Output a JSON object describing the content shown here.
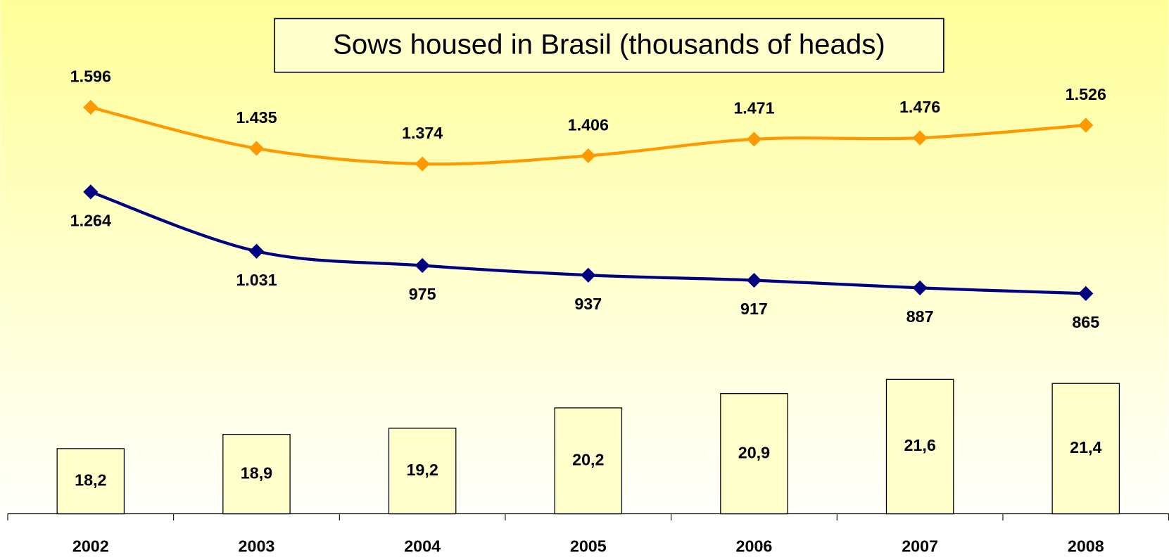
{
  "chart_data": {
    "type": "combo",
    "title": "Sows housed in Brasil (thousands of heads)",
    "categories": [
      "2002",
      "2003",
      "2004",
      "2005",
      "2006",
      "2007",
      "2008"
    ],
    "ylim": [
      0,
      2000
    ],
    "y2lim": [
      15,
      40
    ],
    "series": [
      {
        "type": "line",
        "color": "#ff9900",
        "values": [
          1596,
          1435,
          1374,
          1406,
          1471,
          1476,
          1526
        ],
        "value_labels": [
          "1.596",
          "1.435",
          "1.374",
          "1.406",
          "1.471",
          "1.476",
          "1.526"
        ]
      },
      {
        "type": "line",
        "color": "#000080",
        "values": [
          1264,
          1031,
          975,
          937,
          917,
          887,
          865
        ],
        "value_labels": [
          "1.264",
          "1.031",
          "975",
          "937",
          "917",
          "887",
          "865"
        ]
      },
      {
        "type": "bar",
        "axis": "y2",
        "color": "#ffffcc",
        "values": [
          18.2,
          18.9,
          19.2,
          20.2,
          20.9,
          21.6,
          21.4
        ],
        "value_labels": [
          "18,2",
          "18,9",
          "19,2",
          "20,2",
          "20,9",
          "21,6",
          "21,4"
        ]
      }
    ]
  }
}
